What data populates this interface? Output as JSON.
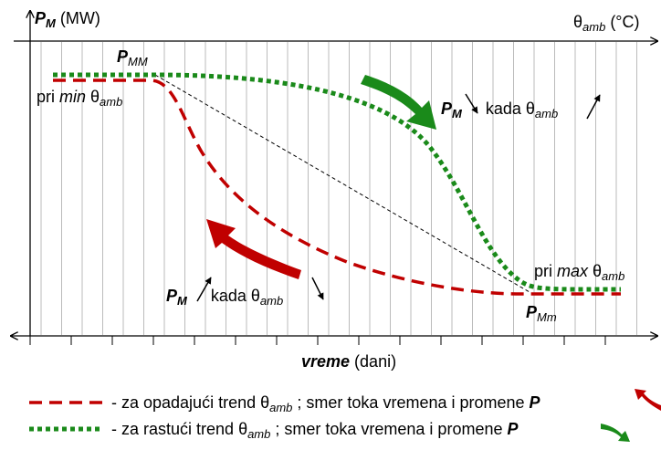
{
  "y_axis": {
    "symbol": "P",
    "sub": "M",
    "unit": "(MW)"
  },
  "theta_axis": {
    "symbol": "θ",
    "sub": "amb",
    "unit": "(°C)"
  },
  "x_axis": {
    "word": "vreme",
    "unit": "(dani)"
  },
  "labels": {
    "p_mm": {
      "symbol": "P",
      "sub": "MM"
    },
    "p_min": {
      "prefix": "pri",
      "qualifier": "min",
      "symbol": "θ",
      "sub": "amb"
    },
    "p_max": {
      "prefix": "pri",
      "qualifier": "max",
      "symbol": "θ",
      "sub": "amb"
    },
    "p_mlow": {
      "symbol": "P",
      "sub": "Mm"
    },
    "rising": {
      "symbol": "P",
      "sub": "M",
      "word": "kada",
      "symbol2": "θ",
      "sub2": "amb"
    },
    "falling": {
      "symbol": "P",
      "sub": "M",
      "word": "kada",
      "symbol2": "θ",
      "sub2": "amb"
    }
  },
  "legend": [
    {
      "text": "- za opadajući trend",
      "symbol": "θ",
      "sub": "amb",
      "rest": "; smer toka vremena i promene",
      "var": "P"
    },
    {
      "text": "- za rastući trend",
      "symbol": "θ",
      "sub": "amb",
      "rest": "; smer toka vremena i promene",
      "var": "P"
    }
  ]
}
